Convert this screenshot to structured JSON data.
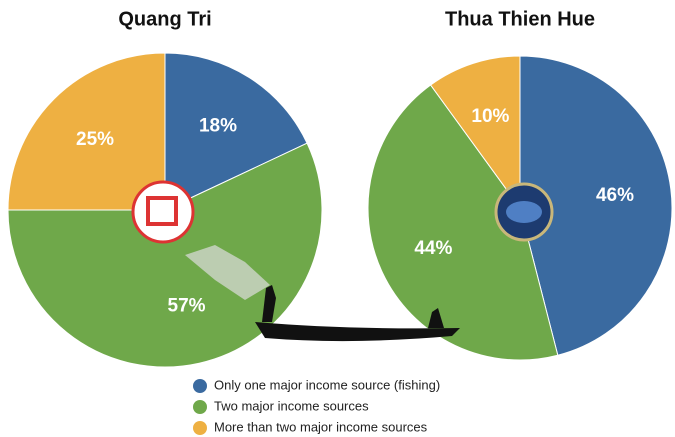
{
  "chart_data": [
    {
      "type": "pie",
      "title": "Quang Tri",
      "values": [
        18,
        57,
        25
      ],
      "value_labels": [
        "18%",
        "57%",
        "25%"
      ]
    },
    {
      "type": "pie",
      "title": "Thua Thien Hue",
      "values": [
        46,
        44,
        10
      ],
      "value_labels": [
        "46%",
        "44%",
        "10%"
      ]
    }
  ],
  "legend": {
    "entries": [
      "Only one major income source (fishing)",
      "Two major income sources",
      "More than two major income sources"
    ],
    "colors": [
      "#3a6aa0",
      "#6fa84a",
      "#eeb042"
    ]
  }
}
